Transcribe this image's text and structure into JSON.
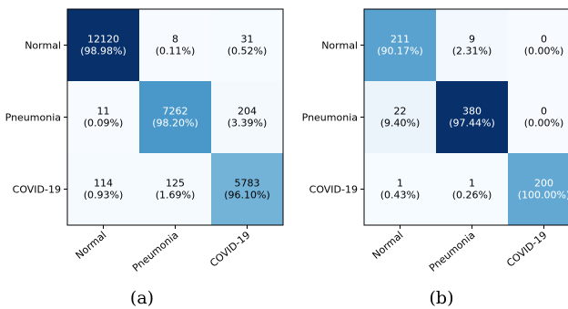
{
  "chart_data": [
    {
      "type": "heatmap",
      "caption": "(a)",
      "row_labels": [
        "Normal",
        "Pneumonia",
        "COVID-19"
      ],
      "col_labels": [
        "Normal",
        "Pneumonia",
        "COVID-19"
      ],
      "counts": [
        [
          12120,
          8,
          31
        ],
        [
          11,
          7262,
          204
        ],
        [
          114,
          125,
          5783
        ]
      ],
      "percents": [
        [
          "98.98%",
          "0.11%",
          "0.52%"
        ],
        [
          "0.09%",
          "98.20%",
          "3.39%"
        ],
        [
          "0.93%",
          "1.69%",
          "96.10%"
        ]
      ],
      "colormap": "Blues"
    },
    {
      "type": "heatmap",
      "caption": "(b)",
      "row_labels": [
        "Normal",
        "Pneumonia",
        "COVID-19"
      ],
      "col_labels": [
        "Normal",
        "Pneumonia",
        "COVID-19"
      ],
      "counts": [
        [
          211,
          9,
          0
        ],
        [
          22,
          380,
          0
        ],
        [
          1,
          1,
          200
        ]
      ],
      "percents": [
        [
          "90.17%",
          "2.31%",
          "0.00%"
        ],
        [
          "9.40%",
          "97.44%",
          "0.00%"
        ],
        [
          "0.43%",
          "0.26%",
          "100.00%"
        ]
      ],
      "colormap": "Blues"
    }
  ]
}
